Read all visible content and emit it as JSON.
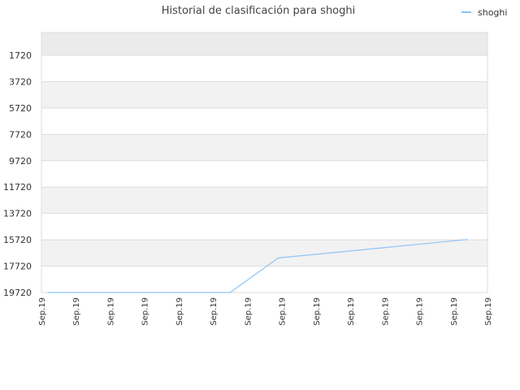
{
  "chart_data": {
    "type": "line",
    "title": "Historial de clasificación para shoghi",
    "legend": {
      "position": "top-right"
    },
    "y_axis": {
      "reversed": true,
      "ticks": [
        1720,
        3720,
        5720,
        7720,
        9720,
        11720,
        13720,
        15720,
        17720,
        19720
      ]
    },
    "x_axis": {
      "tick_labels": [
        "Sep.19",
        "Sep.19",
        "Sep.19",
        "Sep.19",
        "Sep.19",
        "Sep.19",
        "Sep.19",
        "Sep.19",
        "Sep.19",
        "Sep.19",
        "Sep.19",
        "Sep.19",
        "Sep.19",
        "Sep.19"
      ]
    },
    "series": [
      {
        "name": "shoghi",
        "color": "#90c4f4",
        "points": [
          {
            "x": 0.2,
            "y": 19720
          },
          {
            "x": 5.5,
            "y": 19720
          },
          {
            "x": 6.9,
            "y": 17100
          },
          {
            "x": 12.4,
            "y": 15700
          }
        ]
      }
    ],
    "colors": {
      "band_alt": "#f2f2f2",
      "band_top": "#ebebeb",
      "grid": "#dddddd",
      "axis_text": "#333333"
    }
  }
}
